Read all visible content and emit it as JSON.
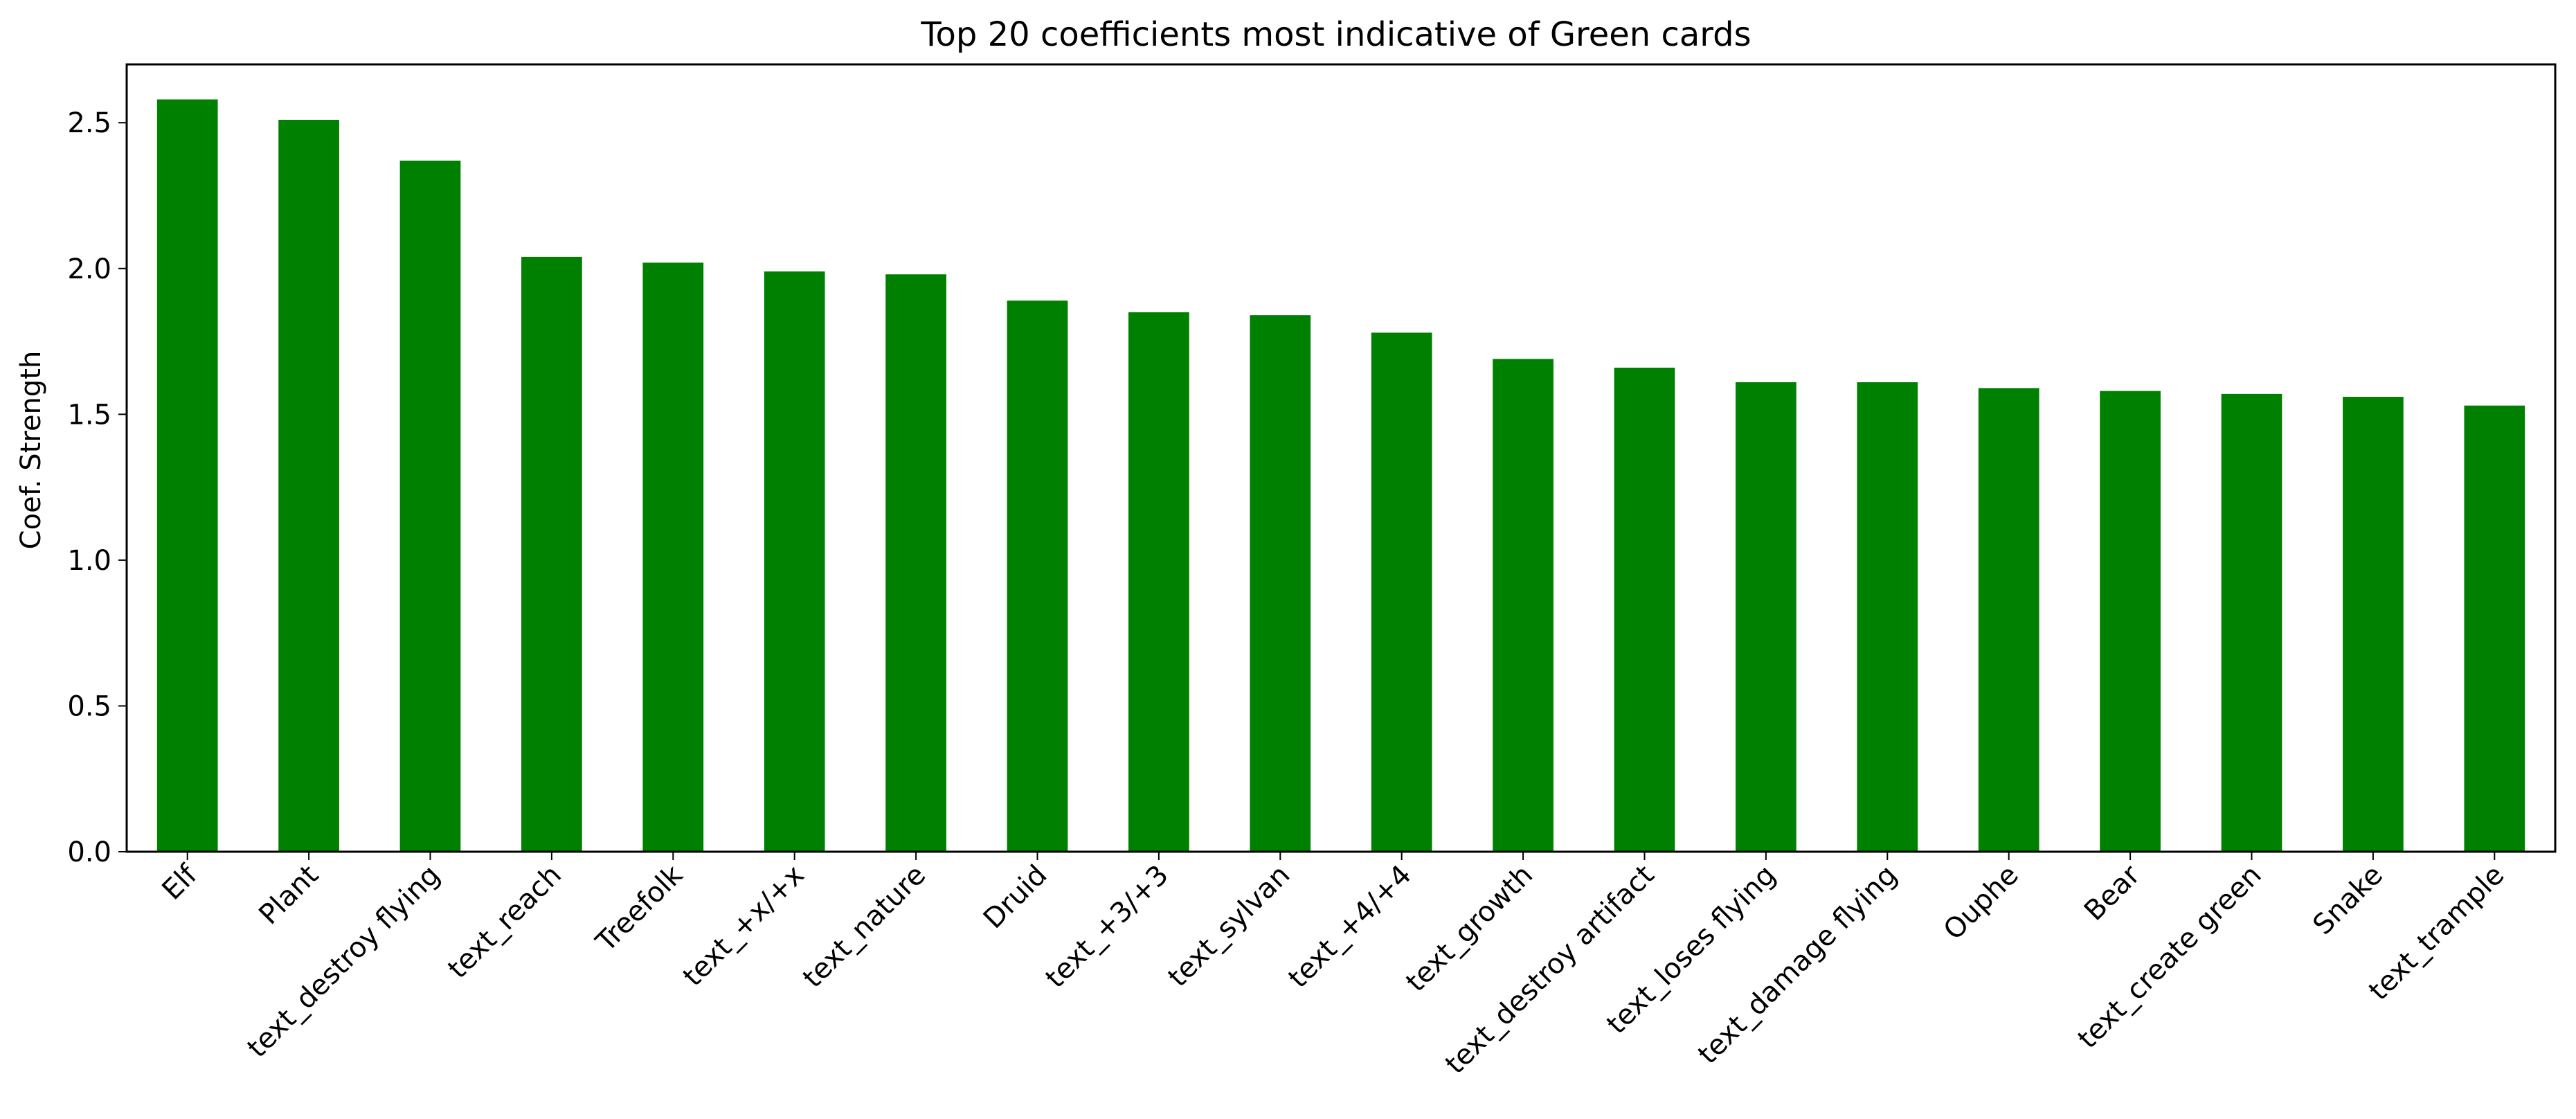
{
  "chart_data": {
    "type": "bar",
    "title": "Top 20 coefficients most indicative of Green cards",
    "xlabel": "",
    "ylabel": "Coef. Strength",
    "categories": [
      "Elf",
      "Plant",
      "text_destroy flying",
      "text_reach",
      "Treefolk",
      "text_+x/+x",
      "text_nature",
      "Druid",
      "text_+3/+3",
      "text_sylvan",
      "text_+4/+4",
      "text_growth",
      "text_destroy artifact",
      "text_loses flying",
      "text_damage flying",
      "Ouphe",
      "Bear",
      "text_create green",
      "Snake",
      "text_trample"
    ],
    "values": [
      2.58,
      2.51,
      2.37,
      2.04,
      2.02,
      1.99,
      1.98,
      1.89,
      1.85,
      1.84,
      1.78,
      1.69,
      1.66,
      1.61,
      1.61,
      1.59,
      1.58,
      1.57,
      1.56,
      1.53
    ],
    "yticks": [
      "0.0",
      "0.5",
      "1.0",
      "1.5",
      "2.0",
      "2.5"
    ],
    "ylim": [
      0,
      2.7
    ],
    "bar_color": "#008000",
    "grid": false,
    "legend": "none"
  }
}
